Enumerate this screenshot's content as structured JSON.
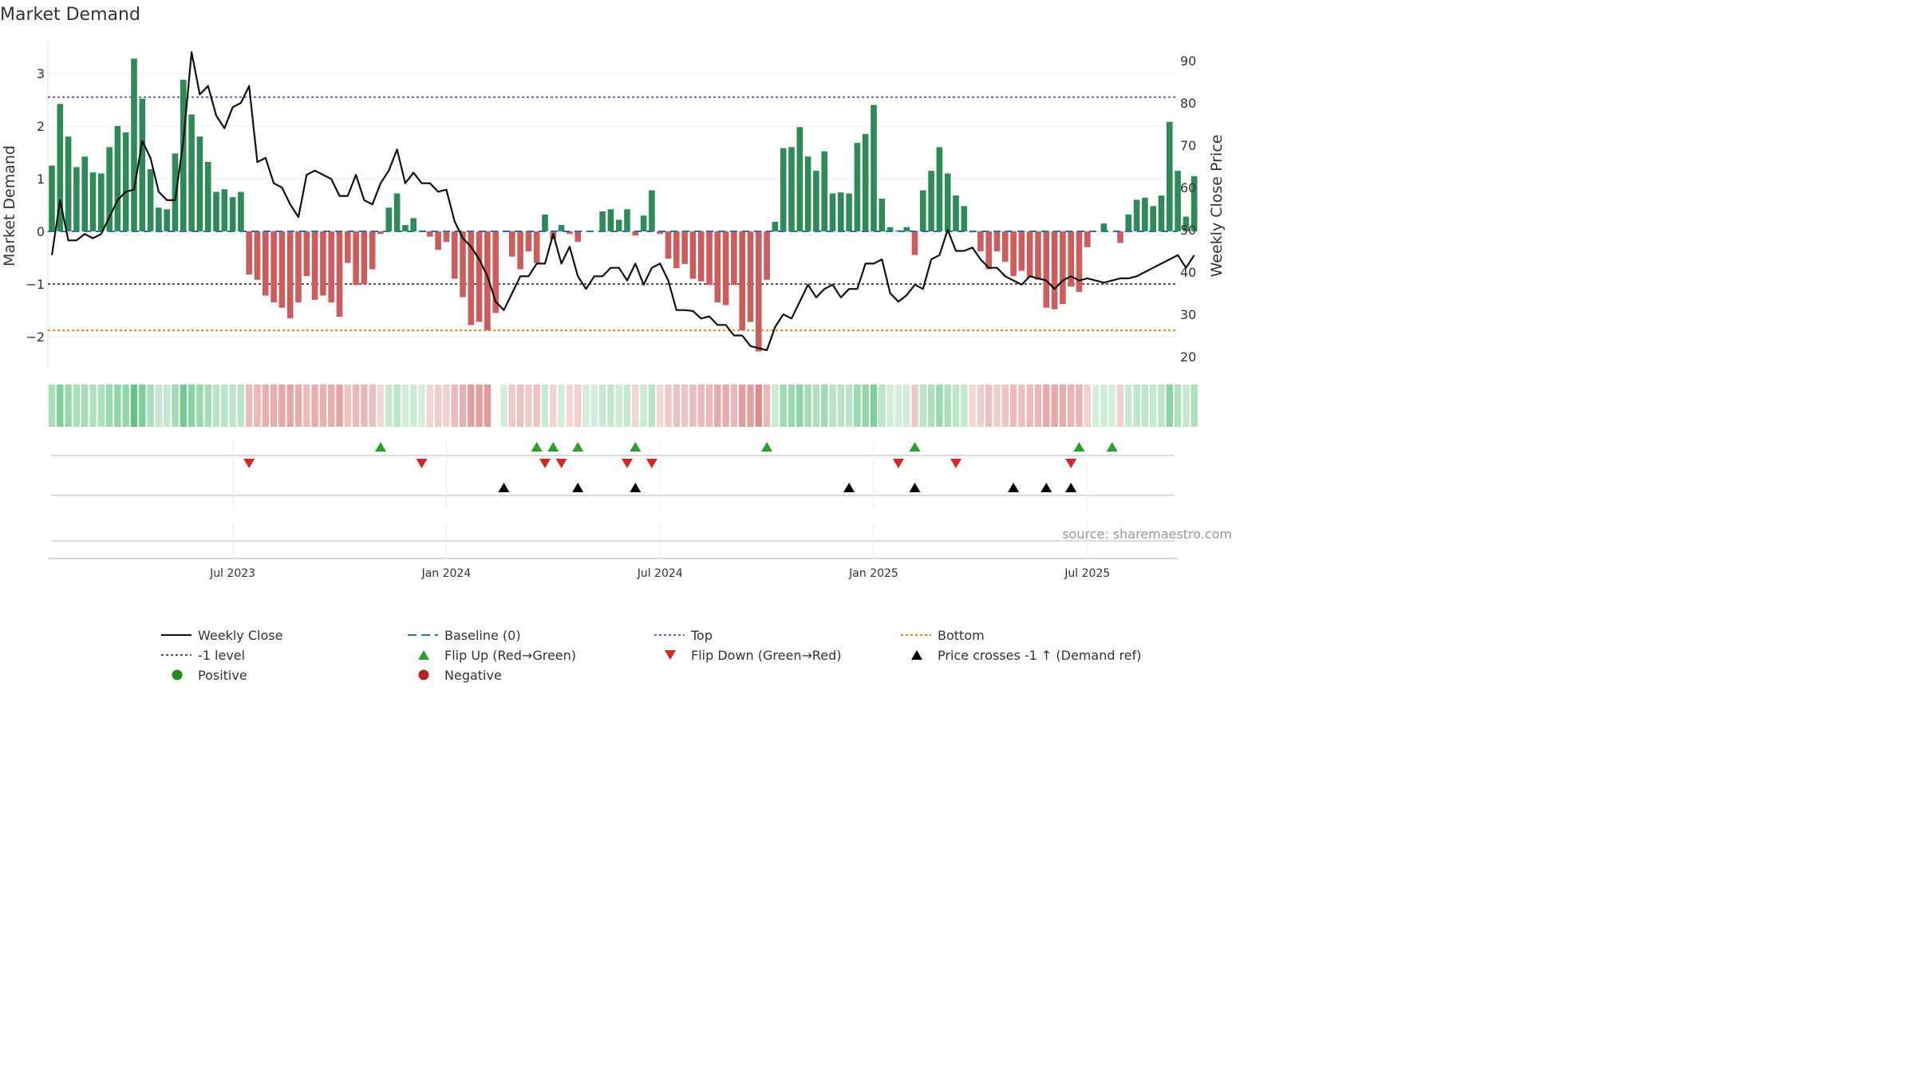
{
  "chart_data": {
    "type": "bar+line",
    "title": "Market Demand",
    "ylabel_left": "Market Demand",
    "ylabel_right": "Weekly Close Price",
    "ylim_left": [
      -2.6,
      3.6
    ],
    "ylim_right": [
      17,
      93
    ],
    "yticks_left": [
      {
        "v": 3,
        "label": "3"
      },
      {
        "v": 2,
        "label": "2"
      },
      {
        "v": 1,
        "label": "1"
      },
      {
        "v": 0,
        "label": "0"
      },
      {
        "v": -1,
        "label": "−1"
      },
      {
        "v": -2,
        "label": "−2"
      }
    ],
    "yticks_right": [
      {
        "v": 90,
        "label": "90"
      },
      {
        "v": 80,
        "label": "80"
      },
      {
        "v": 70,
        "label": "70"
      },
      {
        "v": 60,
        "label": "60"
      },
      {
        "v": 50,
        "label": "50"
      },
      {
        "v": 40,
        "label": "40"
      },
      {
        "v": 30,
        "label": "30"
      },
      {
        "v": 20,
        "label": "20"
      }
    ],
    "xticks": [
      {
        "i": 22,
        "label": "Jul 2023"
      },
      {
        "i": 48,
        "label": "Jan 2024"
      },
      {
        "i": 74,
        "label": "Jul 2024"
      },
      {
        "i": 100,
        "label": "Jan 2025"
      },
      {
        "i": 126,
        "label": "Jul 2025"
      }
    ],
    "levels": {
      "top": 2.55,
      "minus_one": -1,
      "bottom": -1.88,
      "baseline": 0
    },
    "demand": [
      1.25,
      2.42,
      1.8,
      1.22,
      1.42,
      1.12,
      1.1,
      1.6,
      2.0,
      1.88,
      3.28,
      2.52,
      1.18,
      0.45,
      0.42,
      1.48,
      2.88,
      2.22,
      1.8,
      1.32,
      0.75,
      0.8,
      0.65,
      0.75,
      -0.82,
      -0.92,
      -1.22,
      -1.35,
      -1.45,
      -1.65,
      -1.35,
      -0.85,
      -1.3,
      -1.22,
      -1.35,
      -1.62,
      -0.6,
      -1.02,
      -1.0,
      -0.72,
      -0.05,
      0.45,
      0.72,
      0.12,
      0.25,
      0.0,
      -0.1,
      -0.35,
      -0.2,
      -0.9,
      -1.25,
      -1.78,
      -1.72,
      -1.88,
      -1.55,
      0.0,
      -0.48,
      -0.72,
      -0.38,
      -0.6,
      0.32,
      -0.15,
      0.12,
      -0.05,
      -0.2,
      0.0,
      0.0,
      0.38,
      0.42,
      0.22,
      0.42,
      -0.08,
      0.3,
      0.78,
      -0.05,
      -0.52,
      -0.7,
      -0.62,
      -0.9,
      -0.95,
      -1.02,
      -1.35,
      -1.4,
      -1.02,
      -1.88,
      -1.72,
      -2.28,
      -0.92,
      0.18,
      1.58,
      1.6,
      1.98,
      1.42,
      1.15,
      1.52,
      0.72,
      0.74,
      0.72,
      1.68,
      1.85,
      2.4,
      0.62,
      0.08,
      0.02,
      0.08,
      -0.45,
      0.78,
      1.15,
      1.6,
      1.1,
      0.68,
      0.48,
      -0.02,
      -0.38,
      -0.72,
      -0.38,
      -0.58,
      -0.85,
      -0.75,
      -0.88,
      -0.92,
      -1.45,
      -1.48,
      -1.38,
      -1.05,
      -1.15,
      -0.3,
      0.0,
      0.15,
      0.0,
      -0.22,
      0.32,
      0.6,
      0.64,
      0.48,
      0.68,
      2.08,
      1.15,
      0.28,
      1.05
    ],
    "close": [
      44,
      57,
      47.5,
      47.5,
      49,
      48,
      49,
      53,
      57,
      59,
      59.5,
      71,
      67,
      59,
      57,
      57,
      71,
      92,
      82,
      84,
      77,
      74,
      79,
      80,
      84,
      66,
      67,
      61,
      60,
      56,
      53,
      63,
      64,
      63,
      62,
      58,
      58,
      63,
      57,
      56,
      61,
      64,
      69,
      61,
      63.5,
      61,
      61,
      59,
      59.5,
      52,
      48,
      46,
      43,
      39,
      33,
      31,
      35,
      39,
      39,
      42,
      42,
      49,
      42,
      46,
      39,
      36,
      39,
      39,
      41,
      41,
      38,
      42,
      37,
      41,
      42,
      38,
      31,
      31,
      30.8,
      29,
      29.5,
      27.5,
      27.5,
      25,
      25,
      22.5,
      22,
      21.5,
      27,
      30,
      29,
      33,
      37,
      34,
      36,
      37,
      34,
      36,
      36,
      42,
      42,
      43,
      35,
      33,
      34.5,
      37,
      36,
      43,
      44,
      50,
      45,
      45,
      45.8,
      43,
      41,
      41,
      39,
      38,
      37,
      39,
      38.5,
      38,
      36,
      38,
      39,
      38,
      38.5,
      38,
      37.5,
      38,
      38.5,
      38.5,
      39,
      40,
      41,
      42,
      43,
      44,
      41,
      44
    ],
    "heat_gap_index": 54,
    "flip_up": [
      40,
      59,
      61,
      64,
      71,
      87,
      105,
      125,
      129
    ],
    "flip_down": [
      24,
      45,
      60,
      62,
      70,
      73,
      103,
      110,
      124
    ],
    "price_cross": [
      55,
      64,
      71,
      97,
      105,
      117,
      121,
      124
    ],
    "source": "source: sharemaestro.com",
    "colors": {
      "positive": "#2e8b57",
      "negative": "#cd5c5c",
      "line": "#111111",
      "baseline": "#1f77b4",
      "top": "#6a5acd",
      "minus_one": "#555555",
      "bottom": "#ff7f0e",
      "flip_up": "#2ca02c",
      "flip_down": "#d62728",
      "cross": "#000000",
      "dot_pos": "#228b22",
      "dot_neg": "#b22222"
    },
    "legend": [
      {
        "label": "Weekly Close",
        "kind": "line",
        "style": "solid",
        "color": "#111111"
      },
      {
        "label": "Baseline (0)",
        "kind": "line",
        "style": "dash",
        "color": "#1f77b4"
      },
      {
        "label": "Top",
        "kind": "line",
        "style": "dot",
        "color": "#6a5acd"
      },
      {
        "label": "Bottom",
        "kind": "line",
        "style": "dot",
        "color": "#ff7f0e"
      },
      {
        "label": "-1 level",
        "kind": "line",
        "style": "dot",
        "color": "#555555"
      },
      {
        "label": "Flip Up (Red→Green)",
        "kind": "tri-up",
        "color": "#2ca02c"
      },
      {
        "label": "Flip Down (Green→Red)",
        "kind": "tri-down",
        "color": "#d62728"
      },
      {
        "label": "Price crosses -1 ↑ (Demand ref)",
        "kind": "tri-up",
        "color": "#000000"
      },
      {
        "label": "Positive",
        "kind": "dot",
        "color": "#228b22"
      },
      {
        "label": "Negative",
        "kind": "dot",
        "color": "#b22222"
      }
    ]
  }
}
